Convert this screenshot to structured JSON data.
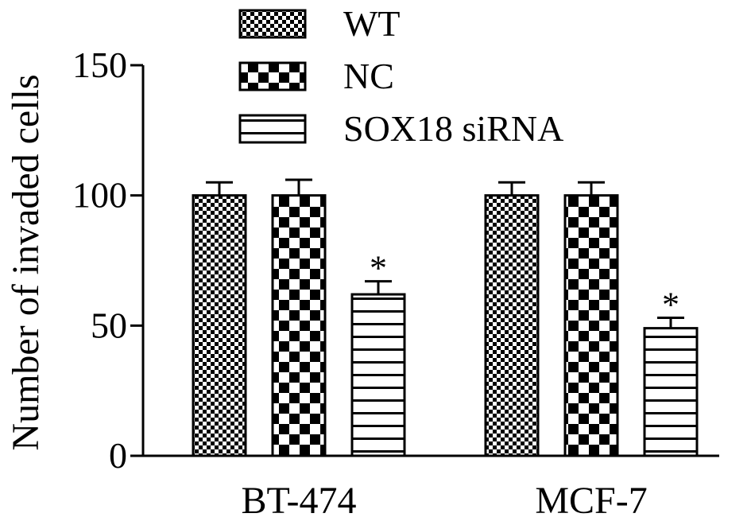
{
  "chart_data": {
    "type": "bar",
    "categories": [
      "BT-474",
      "MCF-7"
    ],
    "series": [
      {
        "name": "WT",
        "values": [
          100,
          100
        ],
        "errors": [
          5,
          5
        ],
        "pattern": "fine-checker"
      },
      {
        "name": "NC",
        "values": [
          100,
          100
        ],
        "errors": [
          6,
          5
        ],
        "pattern": "coarse-checker"
      },
      {
        "name": "SOX18 siRNA",
        "values": [
          62,
          49
        ],
        "errors": [
          5,
          4
        ],
        "pattern": "horizontal-stripes"
      }
    ],
    "annotations": [
      {
        "series": "SOX18 siRNA",
        "category": "BT-474",
        "text": "*"
      },
      {
        "series": "SOX18 siRNA",
        "category": "MCF-7",
        "text": "*"
      }
    ],
    "ylabel": "Number of invaded cells",
    "xlabel": "",
    "ylim": [
      0,
      150
    ],
    "yticks": [
      0,
      50,
      100,
      150
    ],
    "ytick_labels": [
      "0",
      "50",
      "100",
      "150"
    ],
    "grid": false,
    "legend_position": "top"
  }
}
